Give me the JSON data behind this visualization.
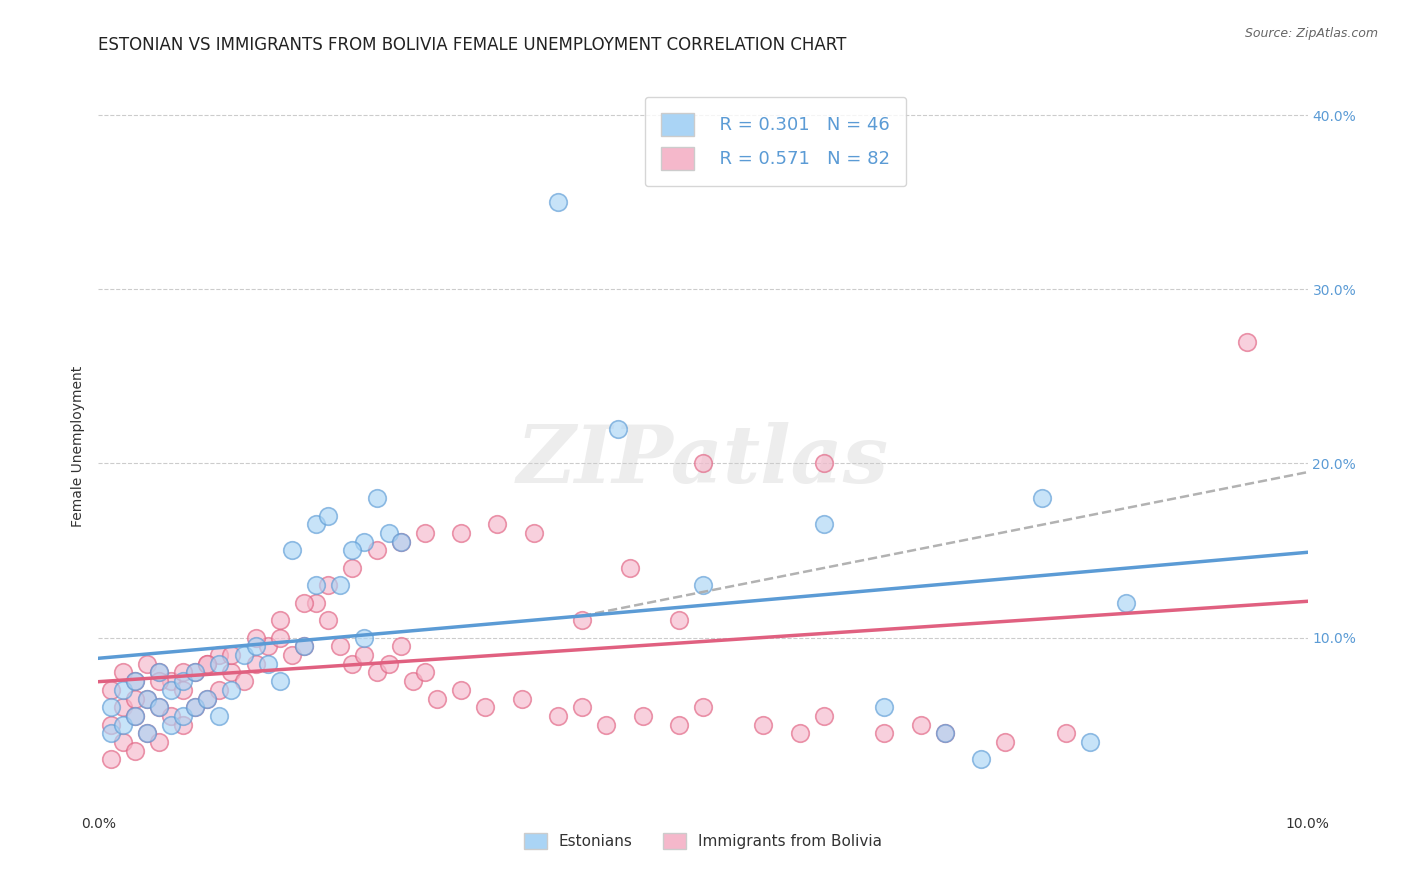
{
  "title": "ESTONIAN VS IMMIGRANTS FROM BOLIVIA FEMALE UNEMPLOYMENT CORRELATION CHART",
  "source": "Source: ZipAtlas.com",
  "ylabel": "Female Unemployment",
  "xlim": [
    0.0,
    0.1
  ],
  "ylim": [
    0.0,
    0.42
  ],
  "x_ticks": [
    0.0,
    0.02,
    0.04,
    0.06,
    0.08,
    0.1
  ],
  "x_tick_labels": [
    "0.0%",
    "",
    "",
    "",
    "",
    "10.0%"
  ],
  "y_ticks_right": [
    0.0,
    0.1,
    0.2,
    0.3,
    0.4
  ],
  "y_tick_labels_right": [
    "",
    "10.0%",
    "20.0%",
    "30.0%",
    "40.0%"
  ],
  "color_estonian": "#aad4f5",
  "color_bolivia": "#f5b8cb",
  "color_line_estonian": "#5b9bd5",
  "color_line_bolivia": "#e06080",
  "color_line_dashed": "#aaaaaa",
  "legend_r_estonian": "R = 0.301",
  "legend_n_estonian": "N = 46",
  "legend_r_bolivia": "R = 0.571",
  "legend_n_bolivia": "N = 82",
  "legend_label_estonian": "Estonians",
  "legend_label_bolivia": "Immigrants from Bolivia",
  "watermark": "ZIPatlas",
  "estonian_x": [
    0.001,
    0.001,
    0.002,
    0.002,
    0.003,
    0.003,
    0.004,
    0.004,
    0.005,
    0.005,
    0.006,
    0.006,
    0.007,
    0.007,
    0.008,
    0.008,
    0.009,
    0.01,
    0.01,
    0.011,
    0.012,
    0.013,
    0.014,
    0.015,
    0.016,
    0.017,
    0.018,
    0.02,
    0.022,
    0.024,
    0.018,
    0.019,
    0.021,
    0.023,
    0.025,
    0.038,
    0.043,
    0.05,
    0.06,
    0.065,
    0.07,
    0.073,
    0.078,
    0.082,
    0.085,
    0.022
  ],
  "estonian_y": [
    0.045,
    0.06,
    0.05,
    0.07,
    0.055,
    0.075,
    0.045,
    0.065,
    0.06,
    0.08,
    0.05,
    0.07,
    0.055,
    0.075,
    0.06,
    0.08,
    0.065,
    0.055,
    0.085,
    0.07,
    0.09,
    0.095,
    0.085,
    0.075,
    0.15,
    0.095,
    0.165,
    0.13,
    0.155,
    0.16,
    0.13,
    0.17,
    0.15,
    0.18,
    0.155,
    0.35,
    0.22,
    0.13,
    0.165,
    0.06,
    0.045,
    0.03,
    0.18,
    0.04,
    0.12,
    0.1
  ],
  "bolivia_x": [
    0.001,
    0.001,
    0.001,
    0.002,
    0.002,
    0.002,
    0.003,
    0.003,
    0.003,
    0.004,
    0.004,
    0.004,
    0.005,
    0.005,
    0.005,
    0.006,
    0.006,
    0.007,
    0.007,
    0.008,
    0.008,
    0.009,
    0.009,
    0.01,
    0.01,
    0.011,
    0.012,
    0.013,
    0.014,
    0.015,
    0.016,
    0.017,
    0.018,
    0.019,
    0.02,
    0.021,
    0.022,
    0.023,
    0.024,
    0.025,
    0.026,
    0.027,
    0.028,
    0.03,
    0.032,
    0.035,
    0.038,
    0.04,
    0.042,
    0.045,
    0.048,
    0.05,
    0.055,
    0.058,
    0.06,
    0.065,
    0.068,
    0.07,
    0.075,
    0.08,
    0.003,
    0.005,
    0.007,
    0.009,
    0.011,
    0.013,
    0.015,
    0.017,
    0.019,
    0.021,
    0.023,
    0.025,
    0.027,
    0.03,
    0.033,
    0.036,
    0.04,
    0.044,
    0.048,
    0.095,
    0.05,
    0.06
  ],
  "bolivia_y": [
    0.03,
    0.05,
    0.07,
    0.04,
    0.06,
    0.08,
    0.035,
    0.055,
    0.075,
    0.045,
    0.065,
    0.085,
    0.04,
    0.06,
    0.08,
    0.055,
    0.075,
    0.05,
    0.07,
    0.06,
    0.08,
    0.065,
    0.085,
    0.07,
    0.09,
    0.08,
    0.075,
    0.085,
    0.095,
    0.1,
    0.09,
    0.095,
    0.12,
    0.11,
    0.095,
    0.085,
    0.09,
    0.08,
    0.085,
    0.095,
    0.075,
    0.08,
    0.065,
    0.07,
    0.06,
    0.065,
    0.055,
    0.06,
    0.05,
    0.055,
    0.05,
    0.06,
    0.05,
    0.045,
    0.055,
    0.045,
    0.05,
    0.045,
    0.04,
    0.045,
    0.065,
    0.075,
    0.08,
    0.085,
    0.09,
    0.1,
    0.11,
    0.12,
    0.13,
    0.14,
    0.15,
    0.155,
    0.16,
    0.16,
    0.165,
    0.16,
    0.11,
    0.14,
    0.11,
    0.27,
    0.2,
    0.2
  ],
  "background_color": "#ffffff",
  "grid_color": "#cccccc",
  "title_fontsize": 12,
  "axis_label_fontsize": 10,
  "tick_fontsize": 10,
  "right_tick_color": "#5b9bd5"
}
